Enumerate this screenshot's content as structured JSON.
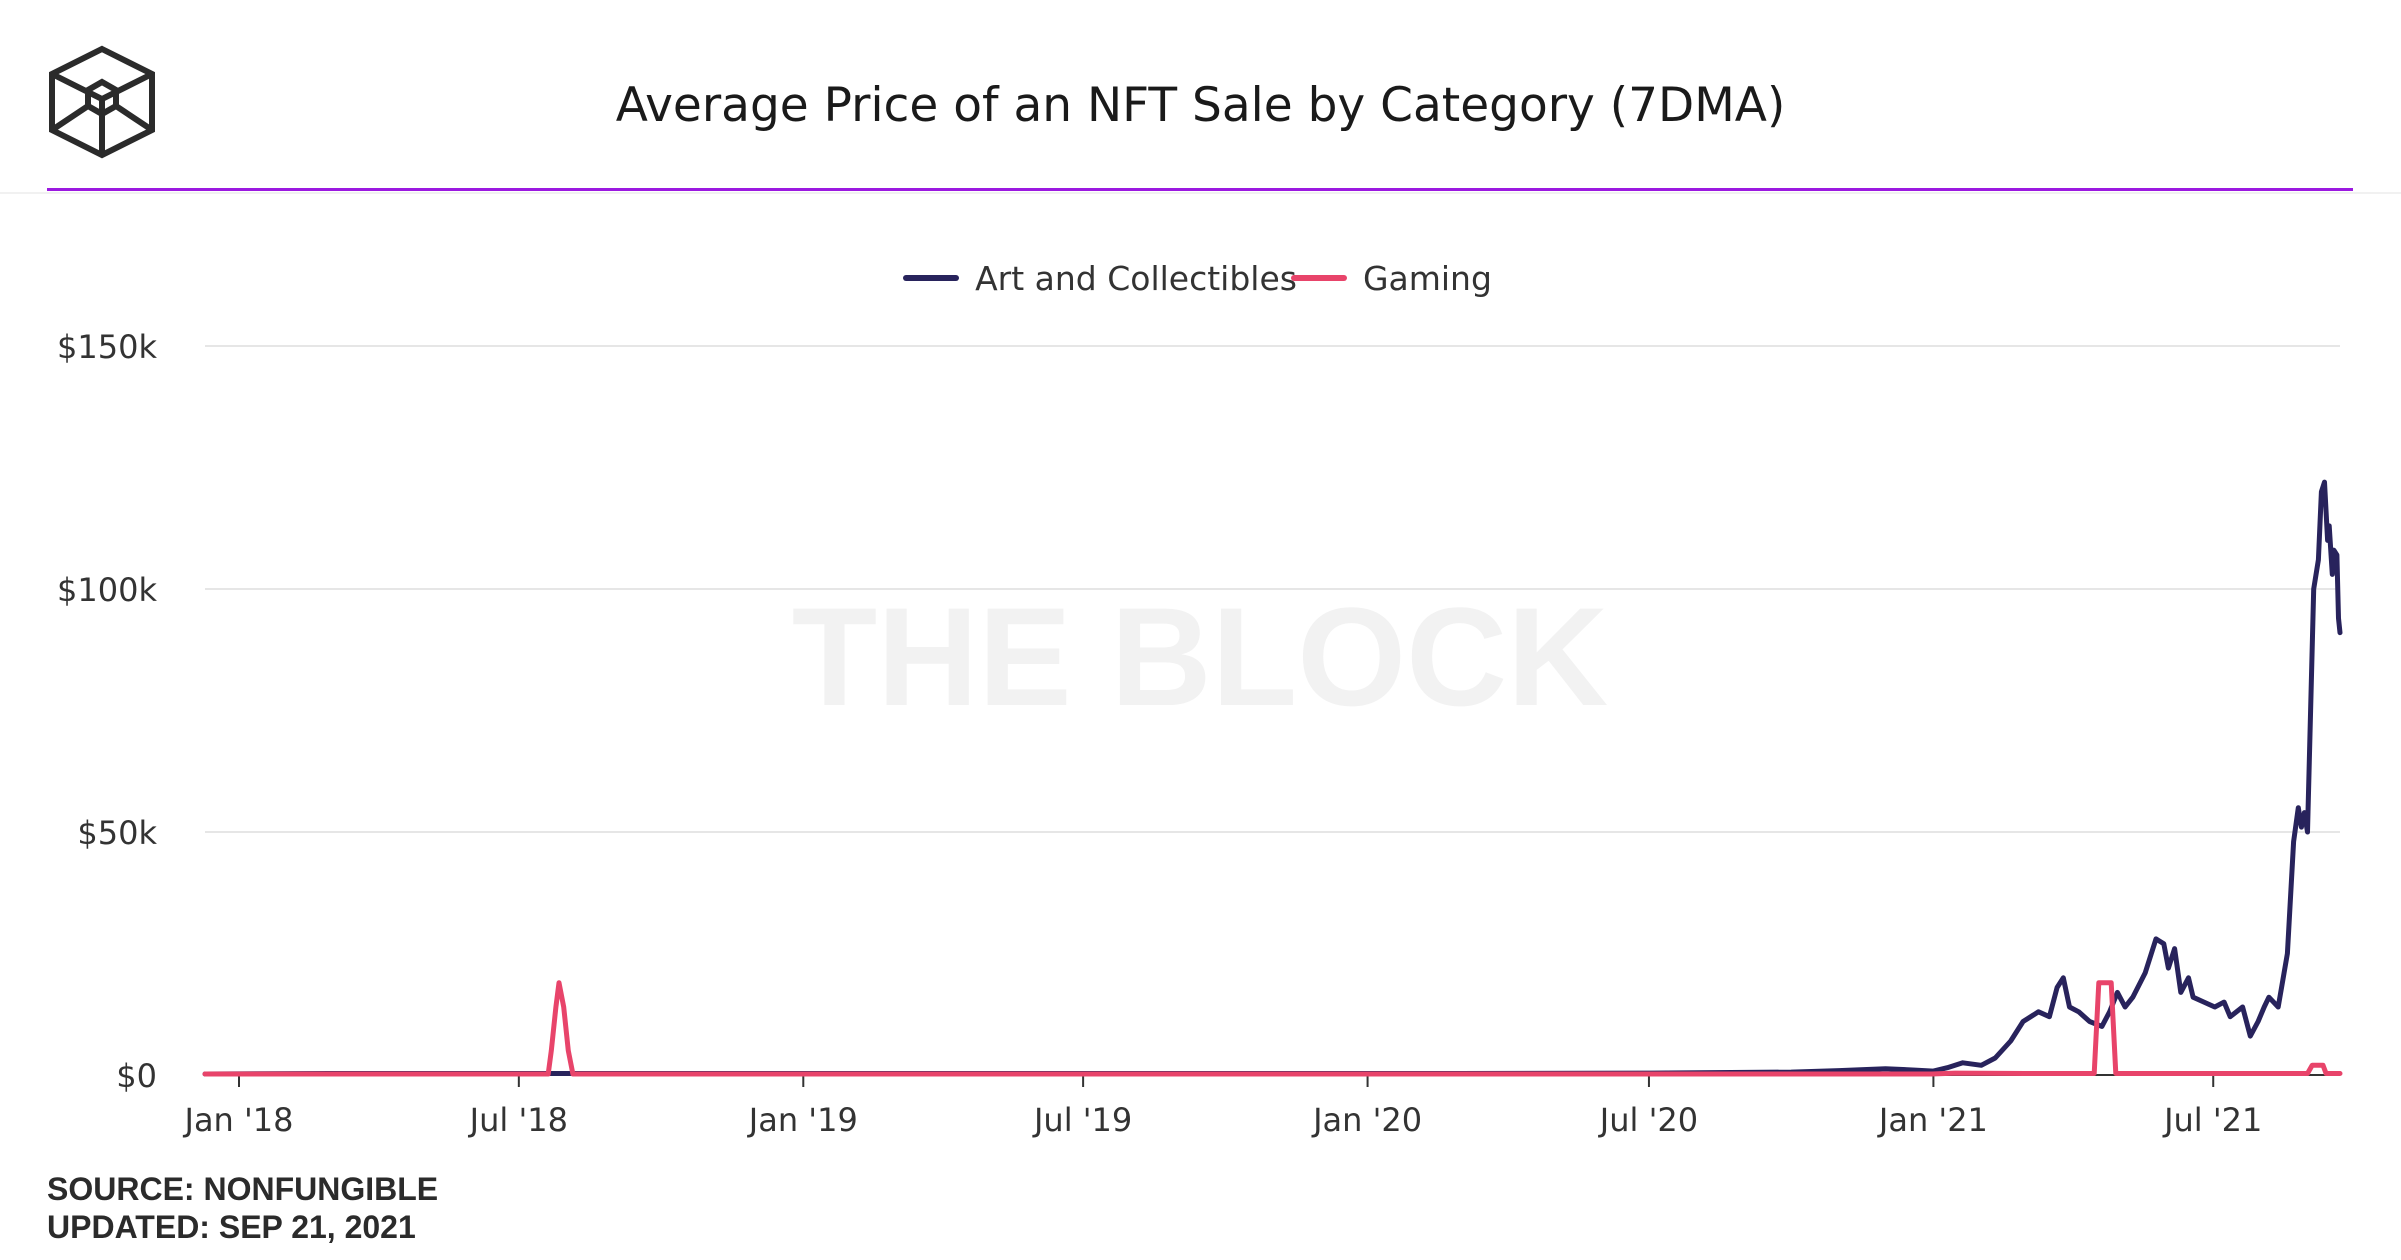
{
  "header": {
    "title": "Average Price of an NFT Sale by Category (7DMA)"
  },
  "watermark": "THE BLOCK",
  "footer": {
    "source": "SOURCE: NONFUNGIBLE",
    "updated": "UPDATED: SEP 21, 2021"
  },
  "colors": {
    "accent_rule": "#9b19e0",
    "art": "#28235c",
    "gaming": "#e8446a",
    "grid": "#e6e6e6",
    "watermark": "#f2f2f2"
  },
  "chart_data": {
    "type": "line",
    "title": "Average Price of an NFT Sale by Category (7DMA)",
    "xlabel": "",
    "ylabel": "",
    "x_range": [
      "2017-12-10",
      "2021-09-21"
    ],
    "ylim": [
      0,
      150000
    ],
    "y_ticks": [
      0,
      50000,
      100000,
      150000
    ],
    "y_tick_labels": [
      "$0",
      "$50k",
      "$100k",
      "$150k"
    ],
    "x_ticks": [
      "2018-01-01",
      "2018-07-01",
      "2019-01-01",
      "2019-07-01",
      "2020-01-01",
      "2020-07-01",
      "2021-01-01",
      "2021-07-01"
    ],
    "x_tick_labels": [
      "Jan '18",
      "Jul '18",
      "Jan '19",
      "Jul '19",
      "Jan '20",
      "Jul '20",
      "Jan '21",
      "Jul '21"
    ],
    "grid": true,
    "legend": "top-center",
    "series": [
      {
        "name": "Art and Collectibles",
        "points": [
          [
            "2017-12-10",
            200
          ],
          [
            "2018-03-01",
            300
          ],
          [
            "2018-09-01",
            300
          ],
          [
            "2019-03-01",
            300
          ],
          [
            "2019-09-01",
            300
          ],
          [
            "2020-03-01",
            300
          ],
          [
            "2020-07-01",
            400
          ],
          [
            "2020-10-01",
            600
          ],
          [
            "2020-11-01",
            900
          ],
          [
            "2020-12-01",
            1300
          ],
          [
            "2020-12-20",
            1000
          ],
          [
            "2021-01-01",
            800
          ],
          [
            "2021-01-10",
            1500
          ],
          [
            "2021-01-20",
            2500
          ],
          [
            "2021-02-01",
            2000
          ],
          [
            "2021-02-10",
            3500
          ],
          [
            "2021-02-20",
            7000
          ],
          [
            "2021-02-28",
            11000
          ],
          [
            "2021-03-10",
            13000
          ],
          [
            "2021-03-17",
            12000
          ],
          [
            "2021-03-22",
            18000
          ],
          [
            "2021-03-26",
            20000
          ],
          [
            "2021-03-30",
            14000
          ],
          [
            "2021-04-05",
            13000
          ],
          [
            "2021-04-12",
            11000
          ],
          [
            "2021-04-20",
            10000
          ],
          [
            "2021-04-25",
            13000
          ],
          [
            "2021-04-30",
            17000
          ],
          [
            "2021-05-05",
            14000
          ],
          [
            "2021-05-10",
            16000
          ],
          [
            "2021-05-18",
            21000
          ],
          [
            "2021-05-25",
            28000
          ],
          [
            "2021-05-30",
            27000
          ],
          [
            "2021-06-02",
            22000
          ],
          [
            "2021-06-06",
            26000
          ],
          [
            "2021-06-10",
            17000
          ],
          [
            "2021-06-15",
            20000
          ],
          [
            "2021-06-18",
            16000
          ],
          [
            "2021-06-25",
            15000
          ],
          [
            "2021-07-02",
            14000
          ],
          [
            "2021-07-08",
            15000
          ],
          [
            "2021-07-12",
            12000
          ],
          [
            "2021-07-20",
            14000
          ],
          [
            "2021-07-25",
            8000
          ],
          [
            "2021-07-30",
            11000
          ],
          [
            "2021-08-03",
            14000
          ],
          [
            "2021-08-06",
            16000
          ],
          [
            "2021-08-12",
            14000
          ],
          [
            "2021-08-18",
            25000
          ],
          [
            "2021-08-22",
            48000
          ],
          [
            "2021-08-25",
            55000
          ],
          [
            "2021-08-27",
            51000
          ],
          [
            "2021-08-29",
            54000
          ],
          [
            "2021-08-31",
            50000
          ],
          [
            "2021-09-02",
            75000
          ],
          [
            "2021-09-04",
            100000
          ],
          [
            "2021-09-07",
            106000
          ],
          [
            "2021-09-09",
            120000
          ],
          [
            "2021-09-11",
            122000
          ],
          [
            "2021-09-13",
            110000
          ],
          [
            "2021-09-14",
            113000
          ],
          [
            "2021-09-16",
            103000
          ],
          [
            "2021-09-17",
            108000
          ],
          [
            "2021-09-19",
            107000
          ],
          [
            "2021-09-20",
            94000
          ],
          [
            "2021-09-21",
            91000
          ]
        ]
      },
      {
        "name": "Gaming",
        "points": [
          [
            "2017-12-10",
            200
          ],
          [
            "2018-07-20",
            200
          ],
          [
            "2018-07-22",
            5000
          ],
          [
            "2018-07-25",
            14000
          ],
          [
            "2018-07-27",
            19000
          ],
          [
            "2018-07-30",
            14000
          ],
          [
            "2018-08-02",
            5000
          ],
          [
            "2018-08-05",
            200
          ],
          [
            "2020-12-31",
            200
          ],
          [
            "2021-01-15",
            400
          ],
          [
            "2021-03-01",
            300
          ],
          [
            "2021-04-15",
            300
          ],
          [
            "2021-04-18",
            19000
          ],
          [
            "2021-04-26",
            19000
          ],
          [
            "2021-04-29",
            300
          ],
          [
            "2021-06-30",
            300
          ],
          [
            "2021-08-31",
            300
          ],
          [
            "2021-09-03",
            2000
          ],
          [
            "2021-09-10",
            2000
          ],
          [
            "2021-09-12",
            300
          ],
          [
            "2021-09-21",
            300
          ]
        ]
      }
    ]
  }
}
